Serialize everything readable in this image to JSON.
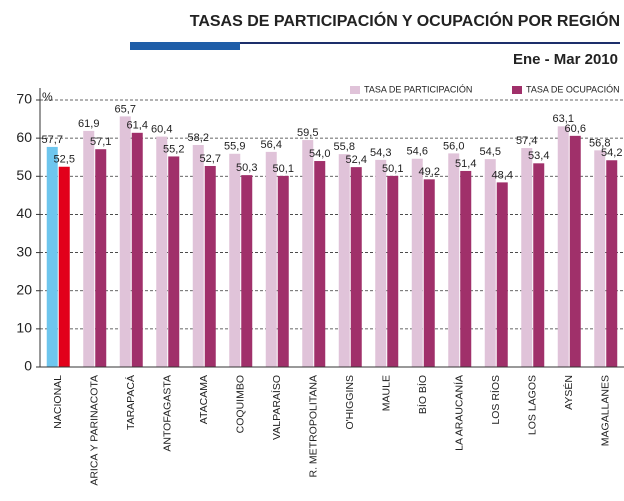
{
  "chart_data": {
    "type": "bar",
    "title": "TASAS DE PARTICIPACIÓN Y OCUPACIÓN POR REGIÓN",
    "subtitle": "Ene - Mar 2010",
    "y_label": "%",
    "categories": [
      "NACIONAL",
      "ARICA Y PARINACOTA",
      "TARAPACÁ",
      "ANTOFAGASTA",
      "ATACAMA",
      "COQUIMBO",
      "VALPARAÍSO",
      "R. METROPOLITANA",
      "O'HIGGINS",
      "MAULE",
      "BÍO BÍO",
      "LA ARAUCANÍA",
      "LOS RÍOS",
      "LOS LAGOS",
      "AYSÉN",
      "MAGALLANES"
    ],
    "series": [
      {
        "name": "TASA DE PARTICIPACIÓN",
        "color": "#e0c3d9",
        "colors": [
          "#6ec6ee",
          "#e0c3d9",
          "#e0c3d9",
          "#e0c3d9",
          "#e0c3d9",
          "#e0c3d9",
          "#e0c3d9",
          "#e0c3d9",
          "#e0c3d9",
          "#e0c3d9",
          "#e0c3d9",
          "#e0c3d9",
          "#e0c3d9",
          "#e0c3d9",
          "#e0c3d9",
          "#e0c3d9"
        ],
        "values": [
          57.7,
          61.9,
          65.7,
          60.4,
          58.2,
          55.9,
          56.4,
          59.5,
          55.8,
          54.3,
          54.6,
          56.0,
          54.5,
          57.4,
          63.1,
          56.8
        ],
        "value_labels": [
          "57,7",
          "61,9",
          "65,7",
          "60,4",
          "58,2",
          "55,9",
          "56,4",
          "59,5",
          "55,8",
          "54,3",
          "54,6",
          "56,0",
          "54,5",
          "57,4",
          "63,1",
          "56,8"
        ]
      },
      {
        "name": "TASA DE OCUPACIÓN",
        "color": "#a0306a",
        "colors": [
          "#e2001a",
          "#a0306a",
          "#a0306a",
          "#a0306a",
          "#a0306a",
          "#a0306a",
          "#a0306a",
          "#a0306a",
          "#a0306a",
          "#a0306a",
          "#a0306a",
          "#a0306a",
          "#a0306a",
          "#a0306a",
          "#a0306a",
          "#a0306a"
        ],
        "values": [
          52.5,
          57.1,
          61.4,
          55.2,
          52.7,
          50.3,
          50.1,
          54.0,
          52.4,
          50.1,
          49.2,
          51.4,
          48.4,
          53.4,
          60.6,
          54.2
        ],
        "value_labels": [
          "52,5",
          "57,1",
          "61,4",
          "55,2",
          "52,7",
          "50,3",
          "50,1",
          "54,0",
          "52,4",
          "50,1",
          "49,2",
          "51,4",
          "48,4",
          "53,4",
          "60,6",
          "54,2"
        ]
      }
    ],
    "ylim": [
      0,
      70
    ],
    "yticks": [
      0,
      10,
      20,
      30,
      40,
      50,
      60,
      70
    ],
    "grid": true
  }
}
